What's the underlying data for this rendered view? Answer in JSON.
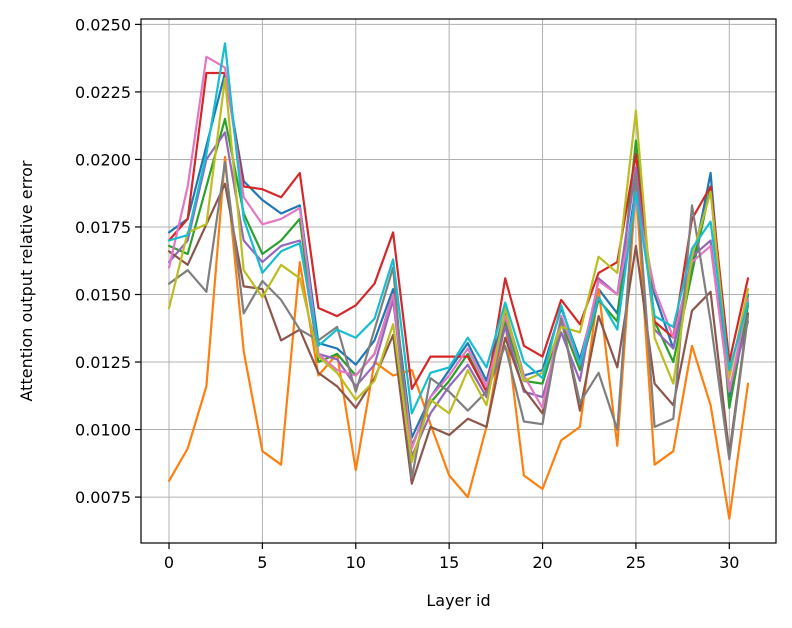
{
  "chart_data": {
    "type": "line",
    "title": "",
    "xlabel": "Layer id",
    "ylabel": "Attention output relative error",
    "xlim": [
      -1.5,
      32.5
    ],
    "ylim": [
      0.0058,
      0.0252
    ],
    "grid": true,
    "legend": "none",
    "x_ticks": [
      0,
      5,
      10,
      15,
      20,
      25,
      30
    ],
    "x_tick_labels": [
      "0",
      "5",
      "10",
      "15",
      "20",
      "25",
      "30"
    ],
    "y_ticks": [
      0.0075,
      0.01,
      0.0125,
      0.015,
      0.0175,
      0.02,
      0.0225,
      0.025
    ],
    "y_tick_labels": [
      "0.0075",
      "0.0100",
      "0.0125",
      "0.0150",
      "0.0175",
      "0.0200",
      "0.0225",
      "0.0250"
    ],
    "x": [
      0,
      1,
      2,
      3,
      4,
      5,
      6,
      7,
      8,
      9,
      10,
      11,
      12,
      13,
      14,
      15,
      16,
      17,
      18,
      19,
      20,
      21,
      22,
      23,
      24,
      25,
      26,
      27,
      28,
      29,
      30,
      31
    ],
    "series": [
      {
        "color": "#1f77b4",
        "values": [
          0.0173,
          0.0178,
          0.0205,
          0.0232,
          0.0192,
          0.0185,
          0.018,
          0.0183,
          0.0132,
          0.013,
          0.0124,
          0.0133,
          0.0152,
          0.0097,
          0.0112,
          0.0122,
          0.0132,
          0.0118,
          0.0144,
          0.012,
          0.0122,
          0.0145,
          0.0126,
          0.0152,
          0.0143,
          0.019,
          0.015,
          0.013,
          0.016,
          0.0195,
          0.0112,
          0.015
        ]
      },
      {
        "color": "#ff7f0e",
        "values": [
          0.0081,
          0.0093,
          0.0116,
          0.0201,
          0.0129,
          0.0092,
          0.0087,
          0.0162,
          0.012,
          0.0128,
          0.0085,
          0.0125,
          0.012,
          0.0122,
          0.0102,
          0.0083,
          0.0075,
          0.0101,
          0.014,
          0.0083,
          0.0078,
          0.0096,
          0.0101,
          0.0152,
          0.0094,
          0.019,
          0.0087,
          0.0092,
          0.0131,
          0.0109,
          0.0067,
          0.0117
        ]
      },
      {
        "color": "#2ca02c",
        "values": [
          0.0168,
          0.0165,
          0.019,
          0.0215,
          0.018,
          0.0165,
          0.017,
          0.0178,
          0.0125,
          0.0128,
          0.012,
          0.0128,
          0.015,
          0.0094,
          0.011,
          0.0118,
          0.0128,
          0.0114,
          0.014,
          0.0118,
          0.0117,
          0.014,
          0.0122,
          0.0148,
          0.014,
          0.0207,
          0.014,
          0.0125,
          0.0158,
          0.019,
          0.0108,
          0.0146
        ]
      },
      {
        "color": "#d62728",
        "values": [
          0.017,
          0.0178,
          0.0232,
          0.0232,
          0.019,
          0.0189,
          0.0186,
          0.0195,
          0.0145,
          0.0142,
          0.0146,
          0.0154,
          0.0173,
          0.0115,
          0.0127,
          0.0127,
          0.0127,
          0.0114,
          0.0156,
          0.0131,
          0.0127,
          0.0148,
          0.0139,
          0.0158,
          0.0162,
          0.0202,
          0.014,
          0.0134,
          0.0178,
          0.019,
          0.0125,
          0.0156
        ]
      },
      {
        "color": "#9467bd",
        "values": [
          0.0162,
          0.017,
          0.02,
          0.021,
          0.017,
          0.0162,
          0.0168,
          0.017,
          0.0128,
          0.0126,
          0.0116,
          0.0124,
          0.0148,
          0.009,
          0.0106,
          0.0116,
          0.0124,
          0.0112,
          0.0138,
          0.0114,
          0.0112,
          0.0136,
          0.0118,
          0.0156,
          0.015,
          0.0197,
          0.0137,
          0.013,
          0.0164,
          0.017,
          0.0115,
          0.014
        ]
      },
      {
        "color": "#8c564b",
        "values": [
          0.0166,
          0.0161,
          0.0176,
          0.0191,
          0.0153,
          0.0152,
          0.0133,
          0.0137,
          0.0121,
          0.0116,
          0.0108,
          0.0119,
          0.0135,
          0.008,
          0.0101,
          0.0098,
          0.0104,
          0.0101,
          0.0134,
          0.0115,
          0.0106,
          0.0142,
          0.0107,
          0.0142,
          0.0123,
          0.0168,
          0.0117,
          0.0109,
          0.0144,
          0.0151,
          0.0091,
          0.0143
        ]
      },
      {
        "color": "#e377c2",
        "values": [
          0.016,
          0.019,
          0.0238,
          0.0234,
          0.0186,
          0.0176,
          0.0178,
          0.0182,
          0.0128,
          0.0122,
          0.012,
          0.0128,
          0.015,
          0.0093,
          0.0112,
          0.012,
          0.013,
          0.0116,
          0.0142,
          0.012,
          0.0108,
          0.0142,
          0.0124,
          0.0155,
          0.015,
          0.0185,
          0.0152,
          0.0134,
          0.0162,
          0.0168,
          0.0114,
          0.0148
        ]
      },
      {
        "color": "#7f7f7f",
        "values": [
          0.0154,
          0.0159,
          0.0151,
          0.0199,
          0.0143,
          0.0155,
          0.0148,
          0.0137,
          0.0133,
          0.0138,
          0.0114,
          0.0137,
          0.016,
          0.0082,
          0.0119,
          0.0114,
          0.0107,
          0.0114,
          0.0131,
          0.0103,
          0.0102,
          0.0141,
          0.011,
          0.0121,
          0.01,
          0.0195,
          0.0101,
          0.0104,
          0.0183,
          0.014,
          0.0089,
          0.0142
        ]
      },
      {
        "color": "#bcbd22",
        "values": [
          0.0145,
          0.0173,
          0.0176,
          0.023,
          0.0159,
          0.0149,
          0.0161,
          0.0156,
          0.0127,
          0.0121,
          0.0111,
          0.0118,
          0.0139,
          0.0088,
          0.0111,
          0.0106,
          0.0122,
          0.0109,
          0.0145,
          0.0118,
          0.0121,
          0.0138,
          0.0136,
          0.0164,
          0.0158,
          0.0218,
          0.0134,
          0.0117,
          0.0164,
          0.0188,
          0.0119,
          0.0152
        ]
      },
      {
        "color": "#17becf",
        "values": [
          0.017,
          0.0172,
          0.0202,
          0.0243,
          0.0178,
          0.0158,
          0.0166,
          0.0169,
          0.0131,
          0.0137,
          0.0134,
          0.0141,
          0.0163,
          0.0106,
          0.0121,
          0.0123,
          0.0134,
          0.0123,
          0.0147,
          0.0125,
          0.0119,
          0.0146,
          0.0124,
          0.0149,
          0.0137,
          0.0188,
          0.0142,
          0.0138,
          0.0167,
          0.0177,
          0.0122,
          0.0147
        ]
      }
    ]
  }
}
